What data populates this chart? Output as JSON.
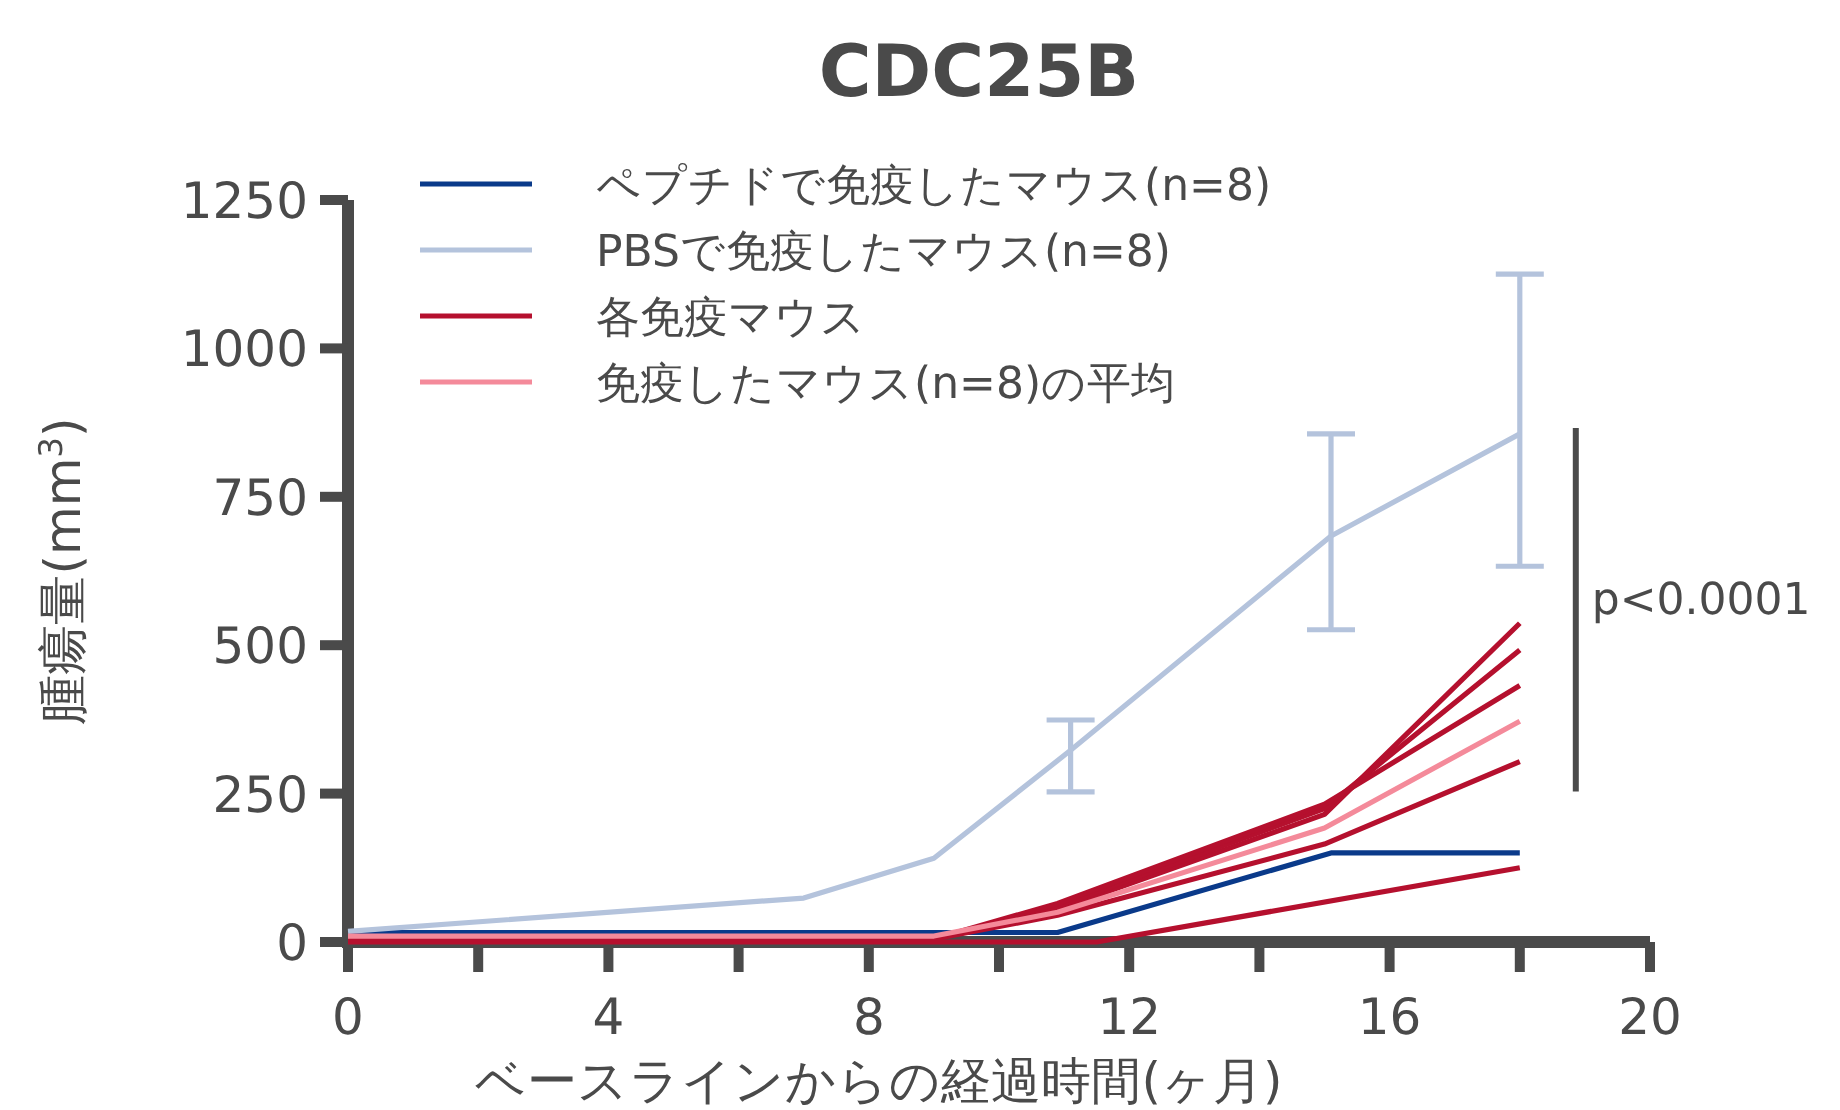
{
  "chart_data": {
    "type": "line",
    "title": "CDC25B",
    "xlabel": "ベースラインからの経過時間(ヶ月)",
    "ylabel": "腫瘍量(mm$^{3}$)",
    "xlim": [
      0,
      20
    ],
    "ylim": [
      0,
      1250
    ],
    "xticks": [
      0,
      {
        "value": 2,
        "label": null
      },
      4,
      {
        "value": 6,
        "label": null
      },
      8,
      {
        "value": 10,
        "label": null
      },
      12,
      {
        "value": 14,
        "label": null
      },
      16,
      {
        "value": 18,
        "label": null
      },
      20
    ],
    "yticks": [
      0,
      250,
      500,
      750,
      1000,
      1250
    ],
    "series": [
      {
        "name": "ペプチドで免疫したマウス(n=8)",
        "color": "#0a3a8a",
        "x": [
          0,
          10.9,
          15.1,
          18
        ],
        "values": [
          16,
          16,
          150,
          150
        ]
      },
      {
        "name": "PBSで免疫したマウス(n=8)",
        "color": "#b4c3dc",
        "x": [
          0,
          7,
          9,
          11.1,
          15.1,
          18
        ],
        "values": [
          18,
          74,
          141,
          323,
          684,
          856
        ],
        "errors": [
          null,
          null,
          null,
          [
            253,
            374
          ],
          [
            526,
            856
          ],
          [
            633,
            1125
          ]
        ]
      },
      {
        "name": "各免疫マウス",
        "color": "#b5102e",
        "x": [
          0,
          9,
          10.9,
          15,
          18
        ],
        "values": [
          5,
          5,
          55,
          215,
          537
        ]
      },
      {
        "color": "#b5102e",
        "x": [
          0,
          9,
          10.9,
          15,
          18
        ],
        "values": [
          5,
          5,
          60,
          225,
          492
        ]
      },
      {
        "color": "#b5102e",
        "x": [
          0,
          9,
          10.9,
          15,
          18
        ],
        "values": [
          5,
          5,
          65,
          232,
          432
        ]
      },
      {
        "color": "#b5102e",
        "x": [
          0,
          9,
          10.9,
          15,
          18
        ],
        "values": [
          5,
          5,
          45,
          165,
          304
        ]
      },
      {
        "color": "#b5102e",
        "x": [
          0,
          11.5,
          18
        ],
        "values": [
          0,
          0,
          125
        ]
      },
      {
        "name": "免疫したマウス(n=8)の平均",
        "color": "#f48a9a",
        "x": [
          0,
          9,
          10.9,
          15,
          18
        ],
        "values": [
          10,
          10,
          50,
          192,
          372
        ]
      }
    ],
    "annotations": [
      "p<0.0001"
    ],
    "legend": "top left",
    "marker": "none",
    "line_style": "solid",
    "grid": false
  }
}
